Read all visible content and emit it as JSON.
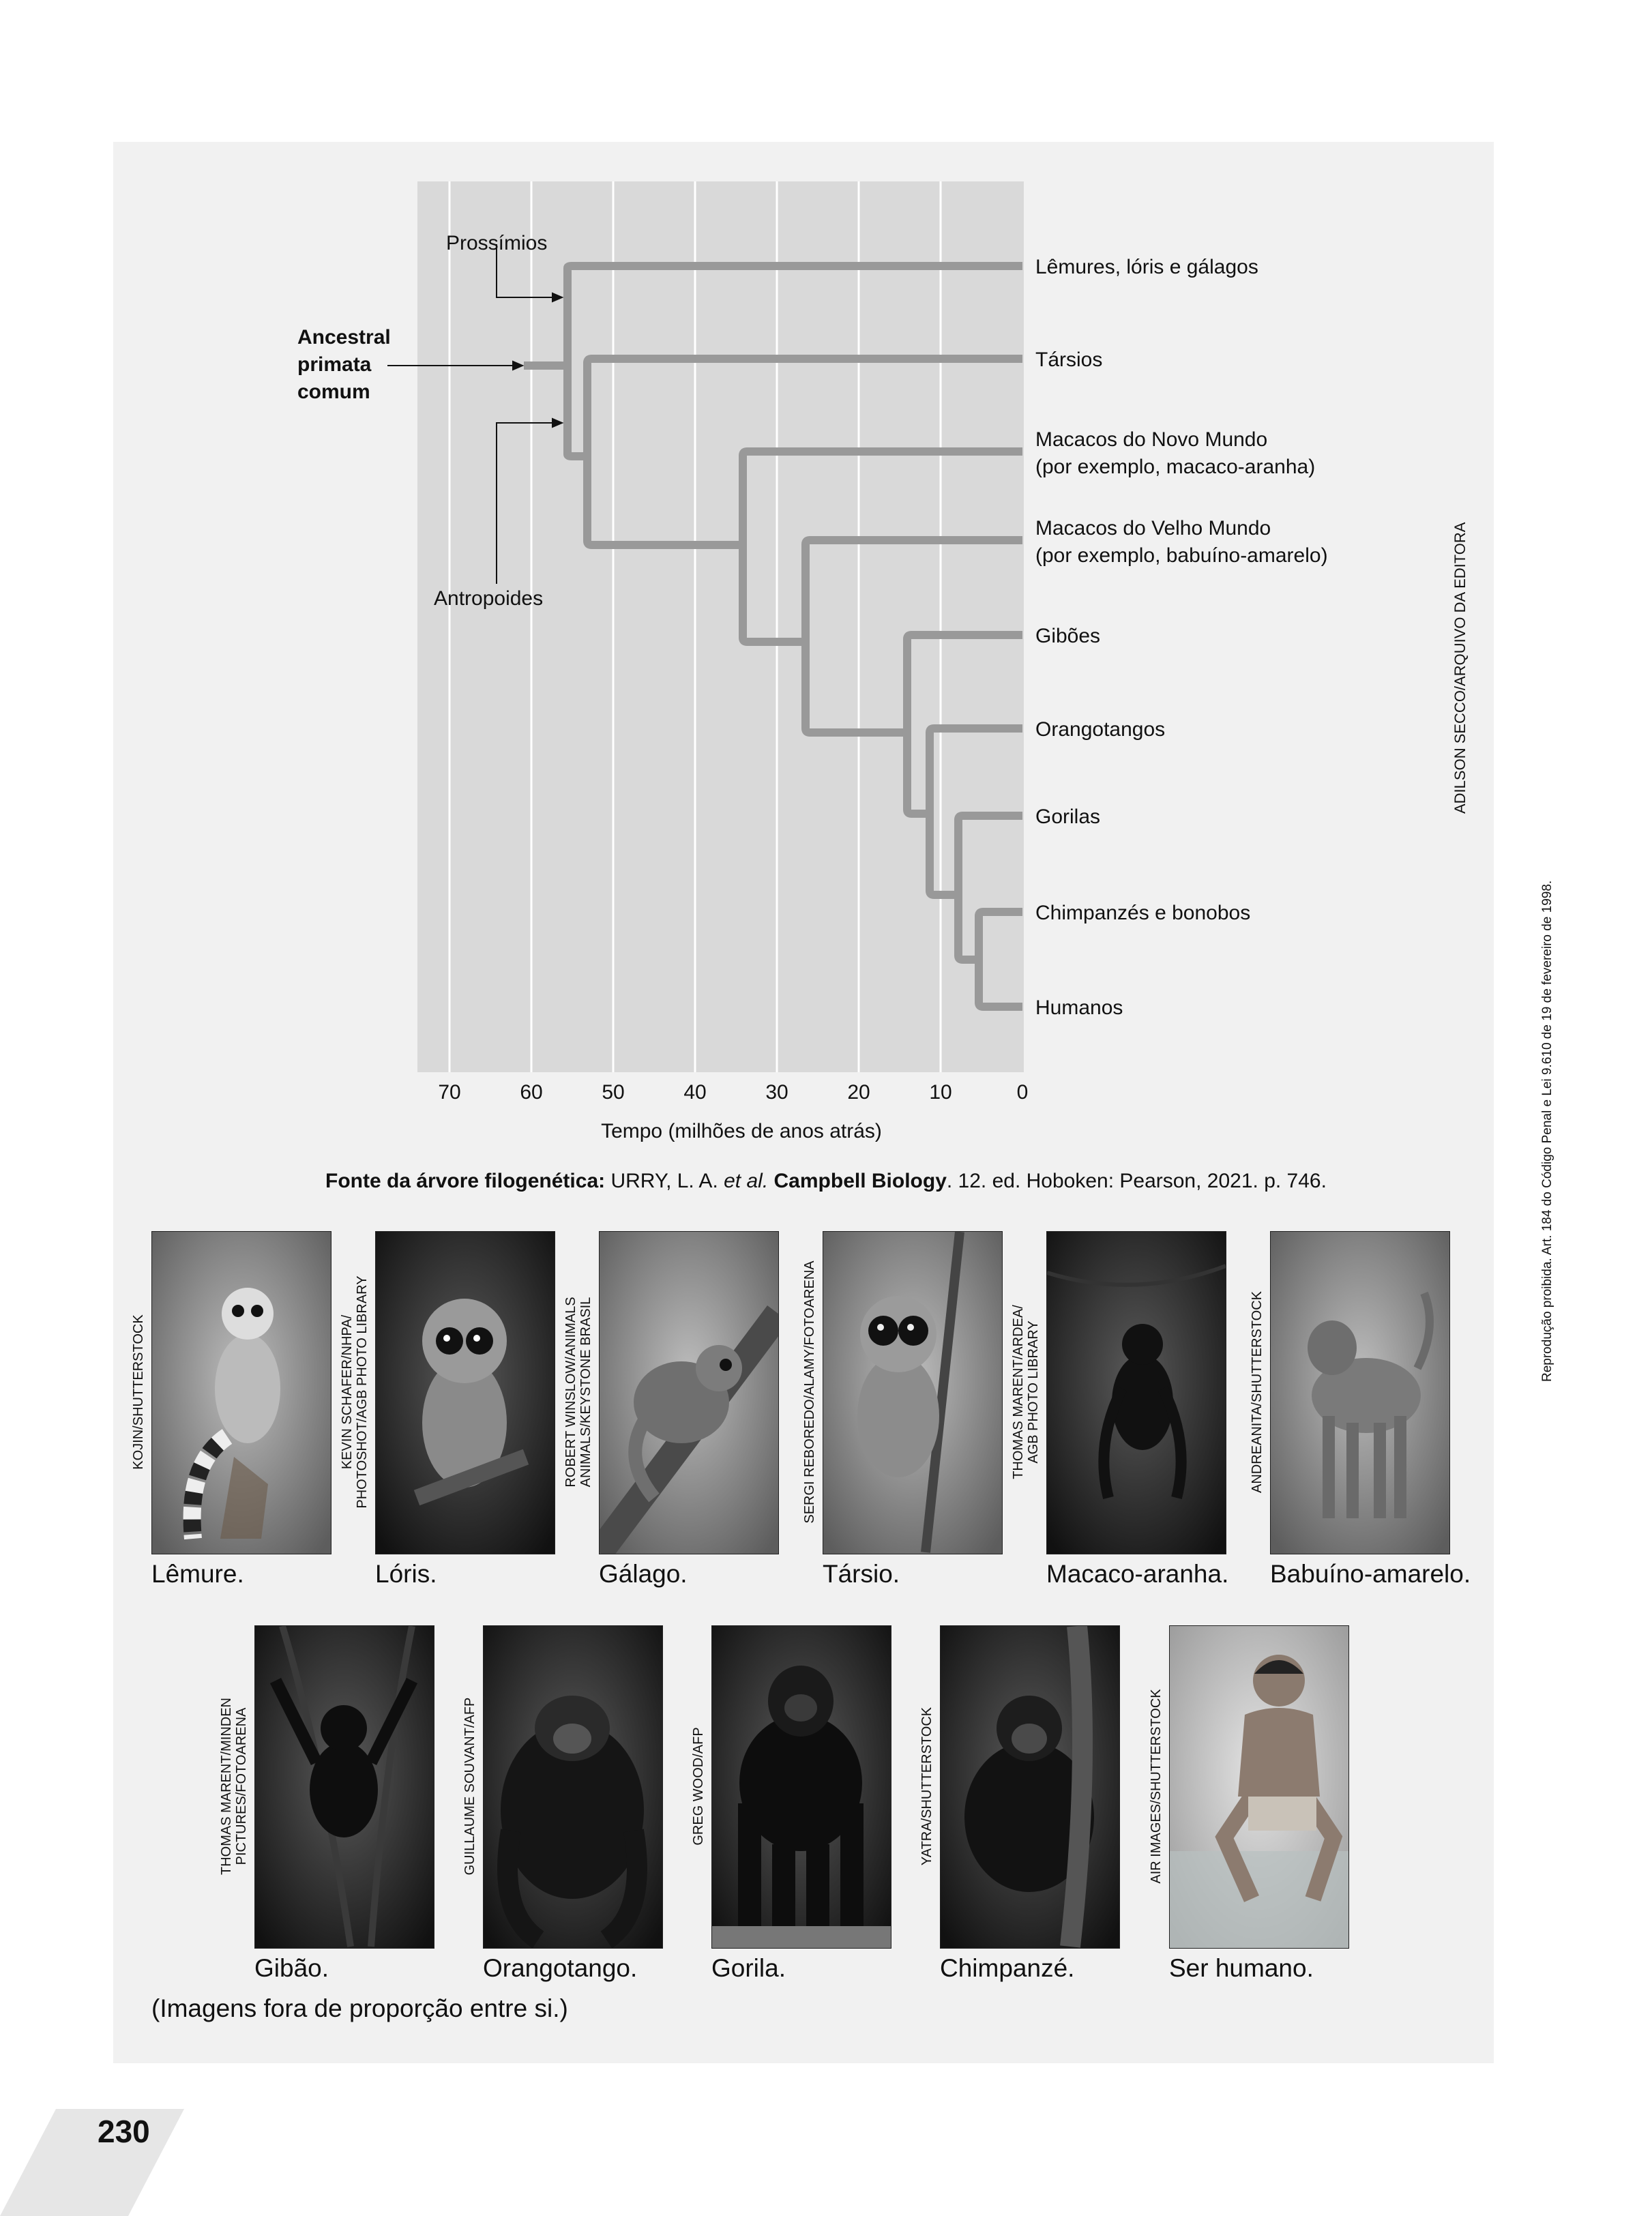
{
  "tree": {
    "axis_label": "Tempo (milhões de anos atrás)",
    "ticks": [
      "70",
      "60",
      "50",
      "40",
      "30",
      "20",
      "10",
      "0"
    ],
    "ancestor_label": [
      "Ancestral",
      "primata",
      "comum"
    ],
    "prosimians_label": "Prossímios",
    "anthropoids_label": "Antropoides",
    "taxa": [
      {
        "lines": [
          "Lêmures, lóris e gálagos"
        ]
      },
      {
        "lines": [
          "Társios"
        ]
      },
      {
        "lines": [
          "Macacos do Novo Mundo",
          "(por exemplo, macaco-aranha)"
        ]
      },
      {
        "lines": [
          "Macacos do Velho Mundo",
          "(por exemplo, babuíno-amarelo)"
        ]
      },
      {
        "lines": [
          "Gibões"
        ]
      },
      {
        "lines": [
          "Orangotangos"
        ]
      },
      {
        "lines": [
          "Gorilas"
        ]
      },
      {
        "lines": [
          "Chimpanzés e bonobos"
        ]
      },
      {
        "lines": [
          "Humanos"
        ]
      }
    ],
    "credit": "ADILSON SECCO/ARQUIVO DA EDITORA",
    "colors": {
      "plot_bg": "#d9d9d9",
      "branch": "#999999",
      "grid": "#ffffff"
    }
  },
  "source": {
    "label": "Fonte da árvore filogenética:",
    "authors": "URRY, L. A.",
    "etal": "et al.",
    "title": "Campbell Biology",
    "rest": ". 12. ed. Hoboken: Pearson, 2021. p. 746."
  },
  "photos": [
    {
      "caption": "Lêmure.",
      "credit": [
        "KOJIN/SHUTTERSTOCK"
      ],
      "icon": "ring-tailed-lemur"
    },
    {
      "caption": "Lóris.",
      "credit": [
        "KEVIN SCHAFER/NHPA/",
        "PHOTOSHOT/AGB PHOTO LIBRARY"
      ],
      "icon": "loris"
    },
    {
      "caption": "Gálago.",
      "credit": [
        "ROBERT WINSLOW/ANIMALS",
        "ANIMALS/KEYSTONE BRASIL"
      ],
      "icon": "galago"
    },
    {
      "caption": "Társio.",
      "credit": [
        "SERGI REBOREDO/ALAMY/FOTOARENA"
      ],
      "icon": "tarsier"
    },
    {
      "caption": "Macaco-aranha.",
      "credit": [
        "THOMAS MARENT/ARDEA/",
        "AGB PHOTO LIBRARY"
      ],
      "icon": "spider-monkey"
    },
    {
      "caption": "Babuíno-amarelo.",
      "credit": [
        "ANDREANITA/SHUTTERSTOCK"
      ],
      "icon": "baboon"
    },
    {
      "caption": "Gibão.",
      "credit": [
        "THOMAS MARENT/MINDEN",
        "PICTURES/FOTOARENA"
      ],
      "icon": "gibbon"
    },
    {
      "caption": "Orangotango.",
      "credit": [
        "GUILLAUME SOUVANT/AFP"
      ],
      "icon": "orangutan"
    },
    {
      "caption": "Gorila.",
      "credit": [
        "GREG WOOD/AFP"
      ],
      "icon": "gorilla"
    },
    {
      "caption": "Chimpanzé.",
      "credit": [
        "YATRA/SHUTTERSTOCK"
      ],
      "icon": "chimpanzee"
    },
    {
      "caption": "Ser humano.",
      "credit": [
        "AIR IMAGES/SHUTTERSTOCK"
      ],
      "icon": "human"
    }
  ],
  "note": "(Imagens fora de proporção entre si.)",
  "legal": "Reprodução proibida. Art. 184 do Código Penal e Lei 9.610 de 19 de fevereiro de 1998.",
  "page_number": "230"
}
